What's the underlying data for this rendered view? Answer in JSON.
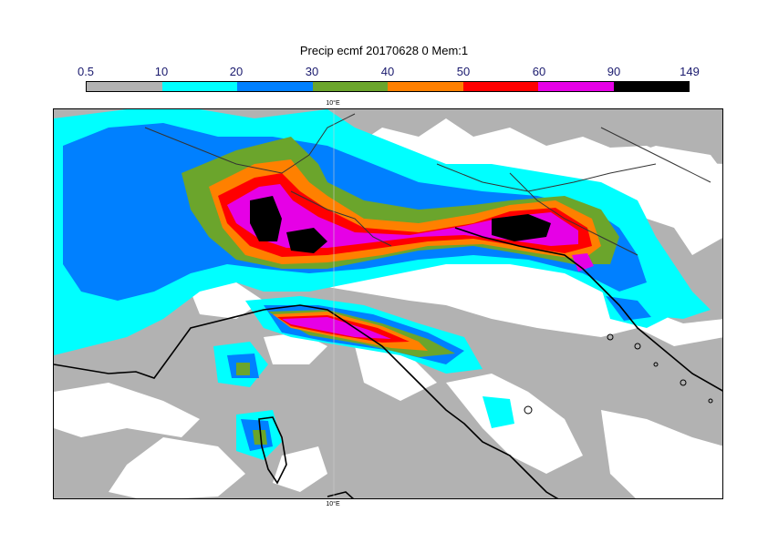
{
  "title": "Precip ecmf 20170628 0 Mem:1",
  "colorbar": {
    "labels": [
      "0.5",
      "10",
      "20",
      "30",
      "40",
      "50",
      "60",
      "90",
      "149"
    ],
    "colors": [
      "#b2b2b2",
      "#00ffff",
      "#0080ff",
      "#6ba52c",
      "#ff8000",
      "#ff0000",
      "#e600e6",
      "#000000"
    ]
  },
  "axis": {
    "top_label": "10°E",
    "bottom_label": "10°E"
  },
  "map_colors": {
    "sea": "#ffffff",
    "land_dry": "#ffffff",
    "coast": "#000000",
    "border": "#333333"
  }
}
